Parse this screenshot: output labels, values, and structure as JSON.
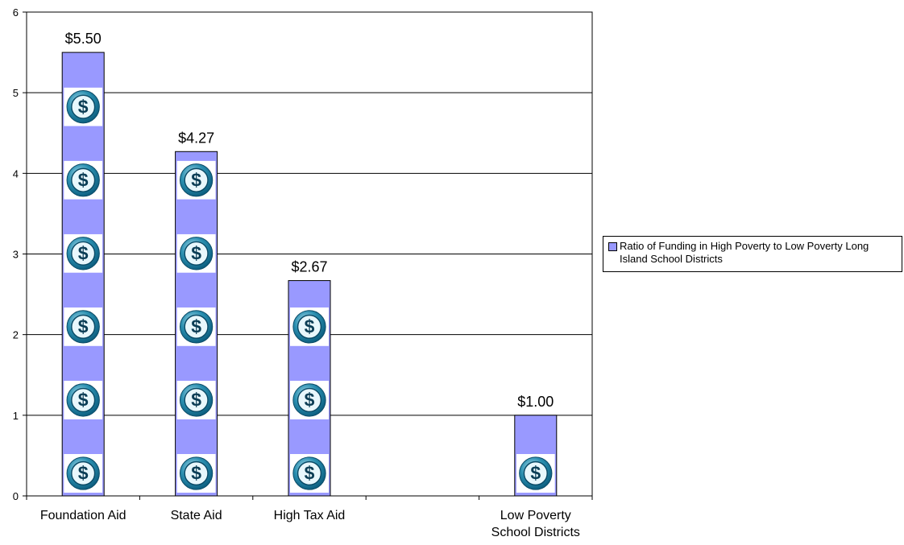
{
  "chart_data": {
    "type": "bar",
    "categories": [
      "Foundation Aid",
      "State Aid",
      "High Tax Aid",
      "",
      "Low Poverty School Districts"
    ],
    "category_lines": [
      [
        "Foundation Aid"
      ],
      [
        "State Aid"
      ],
      [
        "High Tax Aid"
      ],
      [],
      [
        "Low Poverty",
        "School Districts"
      ]
    ],
    "series": [
      {
        "name": "Ratio of Funding in High Poverty to Low Poverty Long Island School Districts",
        "values": [
          5.5,
          4.27,
          2.67,
          null,
          1.0
        ],
        "data_labels": [
          "$5.50",
          "$4.27",
          "$2.67",
          "",
          "$1.00"
        ]
      }
    ],
    "ylim": [
      0,
      6
    ],
    "yticks": [
      "0",
      "1",
      "2",
      "3",
      "4",
      "5",
      "6"
    ],
    "grid": true,
    "legend_position": "right",
    "bar_fill": "picture-of-dollar-coins",
    "icon": "dollar-coin-icon",
    "colors": {
      "bar": "#9999ff",
      "coin_outer": "#2a8fb0",
      "coin_inner": "#0d5f80",
      "axis": "#000000",
      "grid": "#000000"
    }
  },
  "legend": {
    "text": "Ratio of Funding in High Poverty to Low Poverty Long Island School Districts"
  }
}
